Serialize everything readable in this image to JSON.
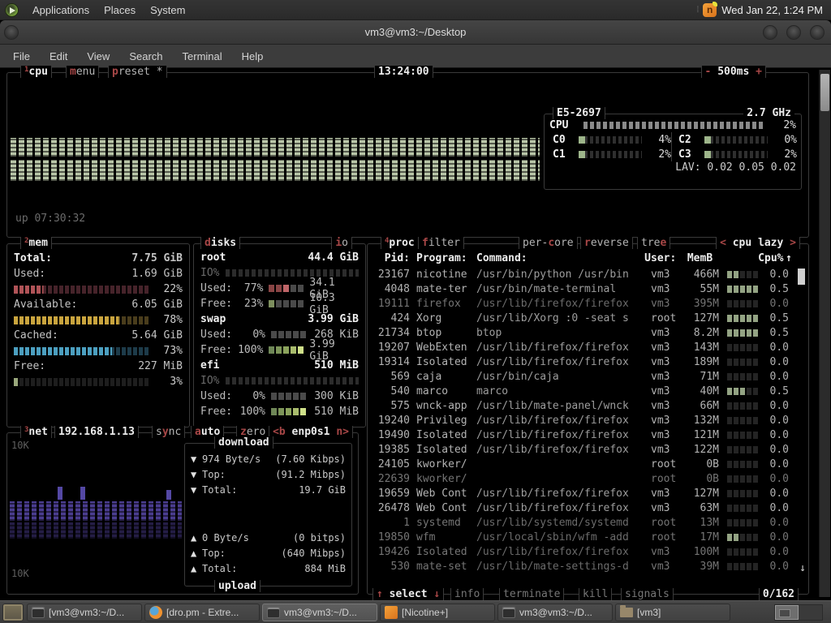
{
  "colors": {
    "terminal_bg": "#000000",
    "box_border": "#3a3a3a",
    "hotkey_red": "#a84747",
    "cpu_graph_green": "#b9c6a8",
    "mem_used_red": "#b05357",
    "mem_avail_gold": "#c9a43e",
    "mem_cached_blue": "#4c9fc0",
    "net_purple": "#4a3d8f",
    "panel_gray": "#343434"
  },
  "top_panel": {
    "menus": [
      "Applications",
      "Places",
      "System"
    ],
    "clock": "Wed Jan 22, 1:24 PM",
    "tray_icon": "nicotine-plus-icon"
  },
  "window": {
    "title": "vm3@vm3:~/Desktop",
    "menus": [
      "File",
      "Edit",
      "View",
      "Search",
      "Terminal",
      "Help"
    ]
  },
  "cpu": {
    "num": "1",
    "title": "cpu",
    "menu": {
      "key": "m",
      "post": "enu"
    },
    "preset": {
      "key": "p",
      "post": "reset *"
    },
    "time": "13:24:00",
    "interval": {
      "minus": "-",
      "label": "500ms",
      "plus": "+"
    },
    "model": "E5-2697",
    "freq": "2.7 GHz",
    "total": {
      "label": "CPU",
      "pct": "2%"
    },
    "cores": [
      {
        "label": "C0",
        "pct": "4%"
      },
      {
        "label": "C2",
        "pct": "0%"
      },
      {
        "label": "C1",
        "pct": "2%"
      },
      {
        "label": "C3",
        "pct": "2%"
      }
    ],
    "lav_label": "LAV:",
    "lav": "0.02 0.05 0.02",
    "uptime": "up 07:30:32"
  },
  "mem": {
    "num": "2",
    "title": "mem",
    "total_label": "Total:",
    "total": "7.75 GiB",
    "rows": [
      {
        "label": "Used:",
        "value": "1.69 GiB",
        "pct": "22%"
      },
      {
        "label": "Available:",
        "value": "6.05 GiB",
        "pct": "78%"
      },
      {
        "label": "Cached:",
        "value": "5.64 GiB",
        "pct": "73%"
      },
      {
        "label": "Free:",
        "value": "227 MiB",
        "pct": "3%"
      }
    ]
  },
  "disks": {
    "title": {
      "key": "d",
      "post": "isks"
    },
    "io": {
      "key": "i",
      "post": "o"
    },
    "list": [
      {
        "name": "root",
        "size": "44.4 GiB",
        "io_label": "IO%",
        "used_label": "Used:",
        "used_pct": "77%",
        "used": "34.1 GiB",
        "free_label": "Free:",
        "free_pct": "23%",
        "free": "10.3 GiB"
      },
      {
        "name": "swap",
        "size": "3.99 GiB",
        "used_label": "Used:",
        "used_pct": "0%",
        "used": "268 KiB",
        "free_label": "Free:",
        "free_pct": "100%",
        "free": "3.99 GiB"
      },
      {
        "name": "efi",
        "size": "510 MiB",
        "io_label": "IO%",
        "used_label": "Used:",
        "used_pct": "0%",
        "used": "300 KiB",
        "free_label": "Free:",
        "free_pct": "100%",
        "free": "510 MiB"
      }
    ]
  },
  "net": {
    "num": "3",
    "title": "net",
    "ip": "192.168.1.13",
    "sync": {
      "pre": "s",
      "key": "y",
      "post": "nc"
    },
    "auto": {
      "key": "a",
      "post": "uto"
    },
    "zero": {
      "key": "z",
      "post": "ero"
    },
    "iface": {
      "larr": "<",
      "lkey": "b",
      "name": "enp0s1",
      "rkey": "n",
      "rarr": ">"
    },
    "scale_top": "10K",
    "scale_bottom": "10K",
    "download": {
      "label": "download",
      "rows": [
        {
          "arrow": "▼",
          "left": "974 Byte/s",
          "right": "(7.60 Kibps)"
        },
        {
          "arrow": "▼",
          "left": "Top:",
          "right": "(91.2 Mibps)"
        },
        {
          "arrow": "▼",
          "left": "Total:",
          "right": "19.7 GiB"
        }
      ]
    },
    "upload": {
      "label": "upload",
      "rows": [
        {
          "arrow": "▲",
          "left": "0 Byte/s",
          "right": "(0 bitps)"
        },
        {
          "arrow": "▲",
          "left": "Top:",
          "right": "(640 Mibps)"
        },
        {
          "arrow": "▲",
          "left": "Total:",
          "right": "884 MiB"
        }
      ]
    }
  },
  "proc": {
    "num": "4",
    "title": "proc",
    "filter": {
      "key": "f",
      "post": "ilter"
    },
    "per_core": {
      "pre": "per-",
      "key": "c",
      "post": "ore"
    },
    "reverse": {
      "key": "r",
      "post": "everse"
    },
    "tree": {
      "pre": "tre",
      "key": "e"
    },
    "sort": {
      "larr": "<",
      "label": "cpu lazy",
      "rarr": ">"
    },
    "headers": {
      "pid": "Pid:",
      "program": "Program:",
      "command": "Command:",
      "user": "User:",
      "mem": "MemB",
      "cpu": "Cpu%",
      "sort_arrow": "↑"
    },
    "rows": [
      {
        "pid": "23167",
        "program": "nicotine",
        "command": "/usr/bin/python /usr/bin",
        "user": "vm3",
        "mem": "466M",
        "cpu": "0.0",
        "dim": false,
        "meter": 2
      },
      {
        "pid": "4048",
        "program": "mate-ter",
        "command": "/usr/bin/mate-terminal",
        "user": "vm3",
        "mem": "55M",
        "cpu": "0.5",
        "dim": false,
        "meter": 5
      },
      {
        "pid": "19111",
        "program": "firefox",
        "command": "/usr/lib/firefox/firefox",
        "user": "vm3",
        "mem": "395M",
        "cpu": "0.0",
        "dim": true,
        "meter": 0
      },
      {
        "pid": "424",
        "program": "Xorg",
        "command": "/usr/lib/Xorg :0 -seat s",
        "user": "root",
        "mem": "127M",
        "cpu": "0.5",
        "dim": false,
        "meter": 5
      },
      {
        "pid": "21734",
        "program": "btop",
        "command": "btop",
        "user": "vm3",
        "mem": "8.2M",
        "cpu": "0.5",
        "dim": false,
        "meter": 5
      },
      {
        "pid": "19207",
        "program": "WebExten",
        "command": "/usr/lib/firefox/firefox",
        "user": "vm3",
        "mem": "143M",
        "cpu": "0.0",
        "dim": false,
        "meter": 0
      },
      {
        "pid": "19314",
        "program": "Isolated",
        "command": "/usr/lib/firefox/firefox",
        "user": "vm3",
        "mem": "189M",
        "cpu": "0.0",
        "dim": false,
        "meter": 0
      },
      {
        "pid": "569",
        "program": "caja",
        "command": "/usr/bin/caja",
        "user": "vm3",
        "mem": "71M",
        "cpu": "0.0",
        "dim": false,
        "meter": 0
      },
      {
        "pid": "540",
        "program": "marco",
        "command": "marco",
        "user": "vm3",
        "mem": "40M",
        "cpu": "0.5",
        "dim": false,
        "meter": 3
      },
      {
        "pid": "575",
        "program": "wnck-app",
        "command": "/usr/lib/mate-panel/wnck",
        "user": "vm3",
        "mem": "66M",
        "cpu": "0.0",
        "dim": false,
        "meter": 0
      },
      {
        "pid": "19240",
        "program": "Privileg",
        "command": "/usr/lib/firefox/firefox",
        "user": "vm3",
        "mem": "132M",
        "cpu": "0.0",
        "dim": false,
        "meter": 0
      },
      {
        "pid": "19490",
        "program": "Isolated",
        "command": "/usr/lib/firefox/firefox",
        "user": "vm3",
        "mem": "121M",
        "cpu": "0.0",
        "dim": false,
        "meter": 0
      },
      {
        "pid": "19385",
        "program": "Isolated",
        "command": "/usr/lib/firefox/firefox",
        "user": "vm3",
        "mem": "122M",
        "cpu": "0.0",
        "dim": false,
        "meter": 0
      },
      {
        "pid": "24105",
        "program": "kworker/",
        "command": "",
        "user": "root",
        "mem": "0B",
        "cpu": "0.0",
        "dim": false,
        "meter": 0
      },
      {
        "pid": "22639",
        "program": "kworker/",
        "command": "",
        "user": "root",
        "mem": "0B",
        "cpu": "0.0",
        "dim": true,
        "meter": 0
      },
      {
        "pid": "19659",
        "program": "Web Cont",
        "command": "/usr/lib/firefox/firefox",
        "user": "vm3",
        "mem": "127M",
        "cpu": "0.0",
        "dim": false,
        "meter": 0
      },
      {
        "pid": "26478",
        "program": "Web Cont",
        "command": "/usr/lib/firefox/firefox",
        "user": "vm3",
        "mem": "63M",
        "cpu": "0.0",
        "dim": false,
        "meter": 0
      },
      {
        "pid": "1",
        "program": "systemd",
        "command": "/usr/lib/systemd/systemd",
        "user": "root",
        "mem": "13M",
        "cpu": "0.0",
        "dim": true,
        "meter": 0
      },
      {
        "pid": "19850",
        "program": "wfm",
        "command": "/usr/local/sbin/wfm -add",
        "user": "root",
        "mem": "17M",
        "cpu": "0.0",
        "dim": true,
        "meter": 2
      },
      {
        "pid": "19426",
        "program": "Isolated",
        "command": "/usr/lib/firefox/firefox",
        "user": "vm3",
        "mem": "100M",
        "cpu": "0.0",
        "dim": true,
        "meter": 0
      },
      {
        "pid": "530",
        "program": "mate-set",
        "command": "/usr/lib/mate-settings-d",
        "user": "vm3",
        "mem": "39M",
        "cpu": "0.0",
        "dim": true,
        "meter": 0
      }
    ],
    "footer": {
      "up": "↑",
      "select": "select",
      "down": "↓",
      "info": "info",
      "terminate": "terminate",
      "kill": "kill",
      "signals": "signals",
      "count": "0/162"
    }
  },
  "taskbar": {
    "items": [
      {
        "label": "[vm3@vm3:~/D...",
        "icon": "terminal",
        "active": false
      },
      {
        "label": "[dro.pm - Extre...",
        "icon": "firefox",
        "active": false
      },
      {
        "label": "vm3@vm3:~/D...",
        "icon": "terminal",
        "active": true
      },
      {
        "label": "[Nicotine+]",
        "icon": "nicotine",
        "active": false
      },
      {
        "label": "vm3@vm3:~/D...",
        "icon": "terminal",
        "active": false
      },
      {
        "label": "[vm3]",
        "icon": "folder",
        "active": false
      }
    ],
    "workspaces": 2
  }
}
